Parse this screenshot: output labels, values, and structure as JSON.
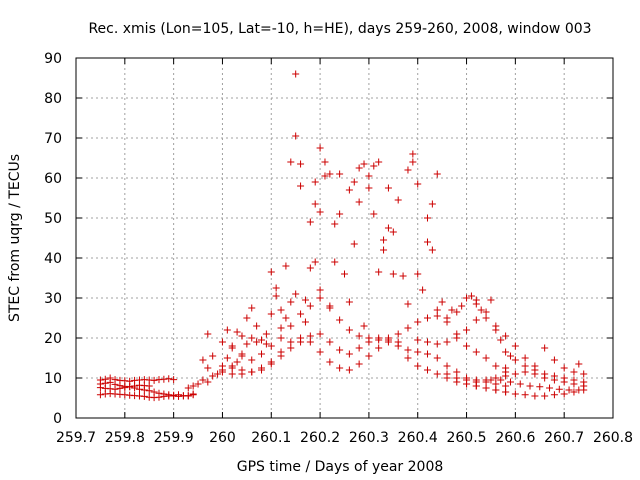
{
  "chart_data": {
    "type": "scatter",
    "title": "Rec. xmis (Lon=105, Lat=-10, h=HE), days 259-260, 2008, window 003",
    "xlabel": "GPS time / Days of year 2008",
    "ylabel": "STEC from uqrg / TECUs",
    "xlim": [
      259.7,
      260.8
    ],
    "ylim": [
      0,
      90
    ],
    "x_ticks": [
      259.7,
      259.8,
      259.9,
      260.0,
      260.1,
      260.2,
      260.3,
      260.4,
      260.5,
      260.6,
      260.7,
      260.8
    ],
    "x_tick_labels": [
      "259.7",
      "259.8",
      "259.9",
      "260",
      "260.1",
      "260.2",
      "260.3",
      "260.4",
      "260.5",
      "260.6",
      "260.7",
      "260.8"
    ],
    "y_ticks": [
      0,
      10,
      20,
      30,
      40,
      50,
      60,
      70,
      80,
      90
    ],
    "y_tick_labels": [
      "0",
      "10",
      "20",
      "30",
      "40",
      "50",
      "60",
      "70",
      "80",
      "90"
    ],
    "grid": true,
    "marker": "plus",
    "color": "#cc0000",
    "points": [
      [
        259.75,
        9.5
      ],
      [
        259.76,
        9.7
      ],
      [
        259.77,
        10.0
      ],
      [
        259.78,
        9.6
      ],
      [
        259.79,
        9.4
      ],
      [
        259.8,
        9.3
      ],
      [
        259.81,
        9.2
      ],
      [
        259.82,
        9.4
      ],
      [
        259.83,
        9.5
      ],
      [
        259.84,
        9.6
      ],
      [
        259.85,
        9.5
      ],
      [
        259.86,
        9.4
      ],
      [
        259.87,
        9.6
      ],
      [
        259.88,
        9.7
      ],
      [
        259.89,
        9.8
      ],
      [
        259.9,
        9.6
      ],
      [
        259.75,
        8.5
      ],
      [
        259.76,
        8.7
      ],
      [
        259.77,
        8.9
      ],
      [
        259.78,
        8.4
      ],
      [
        259.79,
        8.1
      ],
      [
        259.8,
        7.9
      ],
      [
        259.81,
        7.8
      ],
      [
        259.82,
        7.5
      ],
      [
        259.83,
        7.2
      ],
      [
        259.84,
        7.0
      ],
      [
        259.85,
        6.8
      ],
      [
        259.86,
        6.5
      ],
      [
        259.87,
        6.2
      ],
      [
        259.88,
        6.0
      ],
      [
        259.89,
        5.8
      ],
      [
        259.9,
        5.5
      ],
      [
        259.91,
        5.4
      ],
      [
        259.92,
        5.5
      ],
      [
        259.93,
        5.6
      ],
      [
        259.94,
        5.8
      ],
      [
        259.75,
        5.8
      ],
      [
        259.76,
        6.0
      ],
      [
        259.77,
        6.1
      ],
      [
        259.78,
        6.0
      ],
      [
        259.79,
        5.9
      ],
      [
        259.8,
        5.8
      ],
      [
        259.81,
        5.7
      ],
      [
        259.82,
        5.6
      ],
      [
        259.83,
        5.5
      ],
      [
        259.84,
        5.4
      ],
      [
        259.85,
        5.2
      ],
      [
        259.86,
        5.1
      ],
      [
        259.87,
        5.2
      ],
      [
        259.88,
        5.4
      ],
      [
        259.89,
        5.5
      ],
      [
        259.9,
        5.7
      ],
      [
        259.91,
        5.8
      ],
      [
        259.92,
        5.6
      ],
      [
        259.93,
        5.5
      ],
      [
        259.94,
        6.0
      ],
      [
        259.75,
        7.6
      ],
      [
        259.76,
        7.4
      ],
      [
        259.77,
        7.3
      ],
      [
        259.78,
        7.2
      ],
      [
        259.79,
        7.4
      ],
      [
        259.8,
        7.6
      ],
      [
        259.81,
        7.8
      ],
      [
        259.82,
        8.0
      ],
      [
        259.83,
        8.2
      ],
      [
        259.84,
        8.1
      ],
      [
        259.85,
        8.0
      ],
      [
        259.93,
        7.5
      ],
      [
        259.94,
        8.0
      ],
      [
        259.95,
        8.5
      ],
      [
        259.96,
        9.5
      ],
      [
        259.97,
        9.0
      ],
      [
        259.96,
        14.5
      ],
      [
        259.97,
        12.5
      ],
      [
        259.97,
        21.0
      ],
      [
        259.98,
        15.5
      ],
      [
        259.98,
        10.5
      ],
      [
        259.99,
        11.0
      ],
      [
        260.0,
        12.0
      ],
      [
        260.01,
        22.0
      ],
      [
        260.01,
        15.0
      ],
      [
        260.02,
        18.0
      ],
      [
        260.02,
        13.0
      ],
      [
        260.03,
        21.5
      ],
      [
        260.03,
        14.0
      ],
      [
        260.04,
        20.5
      ],
      [
        260.04,
        16.0
      ],
      [
        260.05,
        25.0
      ],
      [
        260.05,
        18.5
      ],
      [
        260.06,
        27.5
      ],
      [
        260.06,
        20.0
      ],
      [
        260.07,
        23.0
      ],
      [
        260.07,
        19.0
      ],
      [
        260.08,
        19.5
      ],
      [
        260.09,
        21.0
      ],
      [
        260.09,
        18.5
      ],
      [
        260.1,
        36.5
      ],
      [
        260.1,
        26.0
      ],
      [
        260.11,
        32.5
      ],
      [
        260.11,
        30.5
      ],
      [
        260.12,
        27.0
      ],
      [
        260.12,
        22.5
      ],
      [
        260.13,
        38.0
      ],
      [
        260.13,
        25.0
      ],
      [
        260.14,
        29.0
      ],
      [
        260.14,
        64.0
      ],
      [
        260.15,
        86.0
      ],
      [
        260.15,
        70.5
      ],
      [
        260.15,
        31.0
      ],
      [
        260.16,
        63.5
      ],
      [
        260.16,
        58.0
      ],
      [
        260.17,
        29.5
      ],
      [
        260.17,
        24.0
      ],
      [
        260.18,
        49.0
      ],
      [
        260.18,
        37.5
      ],
      [
        260.19,
        59.0
      ],
      [
        260.19,
        53.5
      ],
      [
        260.19,
        39.0
      ],
      [
        260.2,
        67.5
      ],
      [
        260.2,
        51.5
      ],
      [
        260.2,
        32.0
      ],
      [
        260.21,
        64.0
      ],
      [
        260.21,
        60.5
      ],
      [
        260.22,
        61.0
      ],
      [
        260.22,
        28.0
      ],
      [
        260.23,
        48.5
      ],
      [
        260.23,
        39.0
      ],
      [
        260.24,
        61.0
      ],
      [
        260.24,
        51.0
      ],
      [
        260.25,
        36.0
      ],
      [
        260.26,
        57.0
      ],
      [
        260.26,
        29.0
      ],
      [
        260.27,
        59.0
      ],
      [
        260.27,
        43.5
      ],
      [
        260.28,
        62.5
      ],
      [
        260.28,
        54.0
      ],
      [
        260.29,
        63.5
      ],
      [
        260.29,
        23.0
      ],
      [
        260.3,
        60.5
      ],
      [
        260.3,
        57.5
      ],
      [
        260.31,
        63.0
      ],
      [
        260.31,
        51.0
      ],
      [
        260.32,
        64.0
      ],
      [
        260.32,
        36.5
      ],
      [
        260.33,
        44.5
      ],
      [
        260.33,
        42.0
      ],
      [
        260.34,
        57.5
      ],
      [
        260.34,
        47.5
      ],
      [
        260.35,
        46.5
      ],
      [
        260.35,
        36.0
      ],
      [
        260.36,
        54.5
      ],
      [
        260.37,
        35.5
      ],
      [
        260.38,
        62.0
      ],
      [
        260.38,
        28.5
      ],
      [
        260.39,
        66.0
      ],
      [
        260.39,
        64.0
      ],
      [
        260.4,
        58.5
      ],
      [
        260.4,
        36.0
      ],
      [
        260.41,
        32.0
      ],
      [
        260.42,
        50.0
      ],
      [
        260.42,
        44.0
      ],
      [
        260.43,
        53.5
      ],
      [
        260.43,
        42.0
      ],
      [
        260.44,
        61.0
      ],
      [
        260.44,
        27.0
      ],
      [
        260.45,
        29.0
      ],
      [
        260.46,
        25.0
      ],
      [
        260.47,
        27.0
      ],
      [
        260.48,
        26.5
      ],
      [
        260.49,
        28.0
      ],
      [
        260.5,
        30.0
      ],
      [
        260.51,
        30.5
      ],
      [
        260.52,
        28.5
      ],
      [
        260.52,
        29.5
      ],
      [
        260.53,
        27.0
      ],
      [
        260.54,
        25.0
      ],
      [
        260.55,
        29.5
      ],
      [
        260.56,
        22.0
      ],
      [
        260.57,
        19.5
      ],
      [
        260.58,
        16.5
      ],
      [
        260.59,
        15.5
      ],
      [
        260.0,
        19.0
      ],
      [
        260.02,
        17.5
      ],
      [
        260.04,
        15.5
      ],
      [
        260.06,
        14.5
      ],
      [
        260.08,
        16.0
      ],
      [
        260.1,
        18.0
      ],
      [
        260.12,
        20.0
      ],
      [
        260.14,
        23.0
      ],
      [
        260.16,
        26.0
      ],
      [
        260.18,
        28.0
      ],
      [
        260.2,
        30.0
      ],
      [
        260.22,
        27.5
      ],
      [
        260.24,
        24.5
      ],
      [
        260.26,
        22.0
      ],
      [
        260.28,
        20.5
      ],
      [
        260.3,
        20.0
      ],
      [
        260.32,
        19.5
      ],
      [
        260.34,
        20.0
      ],
      [
        260.36,
        21.0
      ],
      [
        260.38,
        22.5
      ],
      [
        260.4,
        24.0
      ],
      [
        260.42,
        25.0
      ],
      [
        260.44,
        25.5
      ],
      [
        260.46,
        24.0
      ],
      [
        260.48,
        21.0
      ],
      [
        260.5,
        18.0
      ],
      [
        260.52,
        16.5
      ],
      [
        260.54,
        15.0
      ],
      [
        260.56,
        13.0
      ],
      [
        260.58,
        11.5
      ],
      [
        260.0,
        13.0
      ],
      [
        260.02,
        12.5
      ],
      [
        260.04,
        12.0
      ],
      [
        260.06,
        11.5
      ],
      [
        260.08,
        12.0
      ],
      [
        260.1,
        13.5
      ],
      [
        260.12,
        15.5
      ],
      [
        260.14,
        17.5
      ],
      [
        260.16,
        19.0
      ],
      [
        260.18,
        20.5
      ],
      [
        260.2,
        21.0
      ],
      [
        260.22,
        19.0
      ],
      [
        260.24,
        17.0
      ],
      [
        260.26,
        16.0
      ],
      [
        260.28,
        17.5
      ],
      [
        260.3,
        19.0
      ],
      [
        260.32,
        20.0
      ],
      [
        260.34,
        19.0
      ],
      [
        260.36,
        18.0
      ],
      [
        260.38,
        17.0
      ],
      [
        260.4,
        16.5
      ],
      [
        260.42,
        16.0
      ],
      [
        260.44,
        15.0
      ],
      [
        260.46,
        13.0
      ],
      [
        260.48,
        11.5
      ],
      [
        260.5,
        10.0
      ],
      [
        260.52,
        9.5
      ],
      [
        260.54,
        9.0
      ],
      [
        260.56,
        8.5
      ],
      [
        260.58,
        8.0
      ],
      [
        260.0,
        11.5
      ],
      [
        260.02,
        11.0
      ],
      [
        260.04,
        11.0
      ],
      [
        260.06,
        11.5
      ],
      [
        260.08,
        12.5
      ],
      [
        260.1,
        14.0
      ],
      [
        260.12,
        16.5
      ],
      [
        260.14,
        19.0
      ],
      [
        260.16,
        20.0
      ],
      [
        260.18,
        19.0
      ],
      [
        260.2,
        16.5
      ],
      [
        260.22,
        14.0
      ],
      [
        260.24,
        12.5
      ],
      [
        260.26,
        12.0
      ],
      [
        260.28,
        13.5
      ],
      [
        260.3,
        15.5
      ],
      [
        260.32,
        17.5
      ],
      [
        260.34,
        19.5
      ],
      [
        260.36,
        19.0
      ],
      [
        260.38,
        15.0
      ],
      [
        260.4,
        13.0
      ],
      [
        260.42,
        12.0
      ],
      [
        260.44,
        11.0
      ],
      [
        260.46,
        10.0
      ],
      [
        260.48,
        9.0
      ],
      [
        260.5,
        8.5
      ],
      [
        260.52,
        8.0
      ],
      [
        260.54,
        7.5
      ],
      [
        260.56,
        7.0
      ],
      [
        260.58,
        6.5
      ],
      [
        260.4,
        19.5
      ],
      [
        260.42,
        19.0
      ],
      [
        260.44,
        18.5
      ],
      [
        260.46,
        19.0
      ],
      [
        260.48,
        20.0
      ],
      [
        260.5,
        22.0
      ],
      [
        260.52,
        24.5
      ],
      [
        260.54,
        26.5
      ],
      [
        260.56,
        23.0
      ],
      [
        260.58,
        20.5
      ],
      [
        260.6,
        18.0
      ],
      [
        260.62,
        15.0
      ],
      [
        260.64,
        13.0
      ],
      [
        260.66,
        17.5
      ],
      [
        260.68,
        14.5
      ],
      [
        260.7,
        12.5
      ],
      [
        260.72,
        11.5
      ],
      [
        260.74,
        11.0
      ],
      [
        260.46,
        11.0
      ],
      [
        260.48,
        10.0
      ],
      [
        260.5,
        9.5
      ],
      [
        260.52,
        9.0
      ],
      [
        260.54,
        9.5
      ],
      [
        260.56,
        10.0
      ],
      [
        260.58,
        12.5
      ],
      [
        260.6,
        14.5
      ],
      [
        260.62,
        13.0
      ],
      [
        260.64,
        11.0
      ],
      [
        260.66,
        10.0
      ],
      [
        260.68,
        9.5
      ],
      [
        260.7,
        9.0
      ],
      [
        260.72,
        8.5
      ],
      [
        260.74,
        8.0
      ],
      [
        260.5,
        8.5
      ],
      [
        260.52,
        8.0
      ],
      [
        260.54,
        7.5
      ],
      [
        260.56,
        7.0
      ],
      [
        260.58,
        6.5
      ],
      [
        260.6,
        6.0
      ],
      [
        260.62,
        5.8
      ],
      [
        260.64,
        5.5
      ],
      [
        260.66,
        5.5
      ],
      [
        260.68,
        5.8
      ],
      [
        260.7,
        6.0
      ],
      [
        260.72,
        6.5
      ],
      [
        260.74,
        7.0
      ],
      [
        260.55,
        9.5
      ],
      [
        260.57,
        9.5
      ],
      [
        260.59,
        9.0
      ],
      [
        260.61,
        8.5
      ],
      [
        260.63,
        8.0
      ],
      [
        260.65,
        7.8
      ],
      [
        260.67,
        7.5
      ],
      [
        260.69,
        7.2
      ],
      [
        260.71,
        7.0
      ],
      [
        260.73,
        7.0
      ],
      [
        260.58,
        10.5
      ],
      [
        260.6,
        11.0
      ],
      [
        260.62,
        11.5
      ],
      [
        260.64,
        12.0
      ],
      [
        260.66,
        11.0
      ],
      [
        260.68,
        10.5
      ],
      [
        260.7,
        10.0
      ],
      [
        260.72,
        9.5
      ],
      [
        260.73,
        13.5
      ],
      [
        260.74,
        9.0
      ]
    ]
  }
}
